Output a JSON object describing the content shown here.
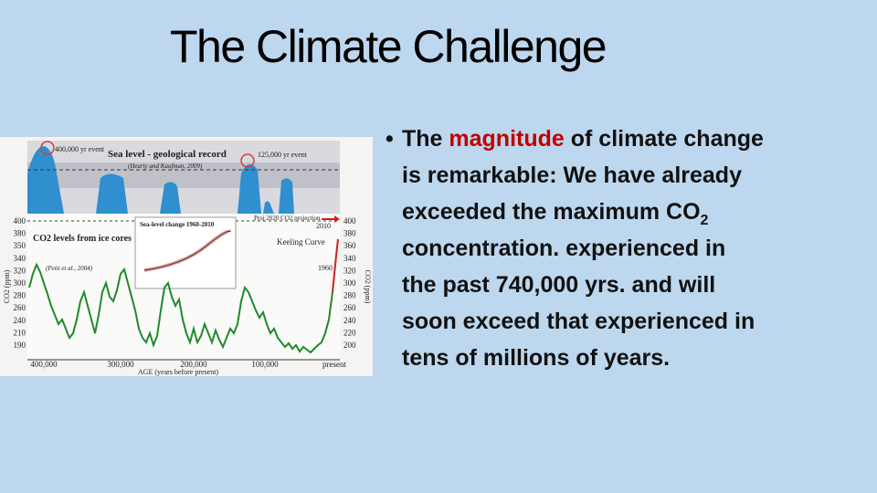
{
  "title": "The Climate Challenge",
  "bullet": {
    "line1": [
      "The ",
      "magnitude",
      " of climate change"
    ],
    "line2": "is remarkable:  We have already",
    "line3": [
      "exceeded the maximum CO",
      "2"
    ],
    "line4": "concentration. experienced in",
    "line5": "the past 740,000 yrs. and will",
    "line6": "soon exceed that experienced in",
    "line7": "tens of millions of years."
  },
  "figure": {
    "sea_title": "Sea level - geological record",
    "sea_source": "(Hearty and Kaufman, 2009)",
    "event_400": "400,000 yr event",
    "event_125": "125,000 yr event",
    "co2_title": "CO2 levels from ice cores",
    "co2_source": "(Petit et al., 2004)",
    "inset_title": "Sea-level change 1960-2010",
    "projection": "Proj 2020 CO2 projection",
    "year_2010": "2010",
    "keeling": "Keeling Curve",
    "year_1960": "1960",
    "left_axis": "CO2 (ppm)",
    "right_axis": "CO2 (ppm)",
    "left_ticks": [
      "400",
      "380",
      "350",
      "340",
      "320",
      "300",
      "280",
      "260",
      "240",
      "210",
      "190"
    ],
    "right_ticks": [
      "400",
      "380",
      "360",
      "340",
      "320",
      "300",
      "280",
      "260",
      "240",
      "220",
      "200"
    ],
    "x_ticks": [
      "400,000",
      "300,000",
      "200,000",
      "100,000",
      "present"
    ],
    "x_axis": "AGE (years before present)"
  }
}
